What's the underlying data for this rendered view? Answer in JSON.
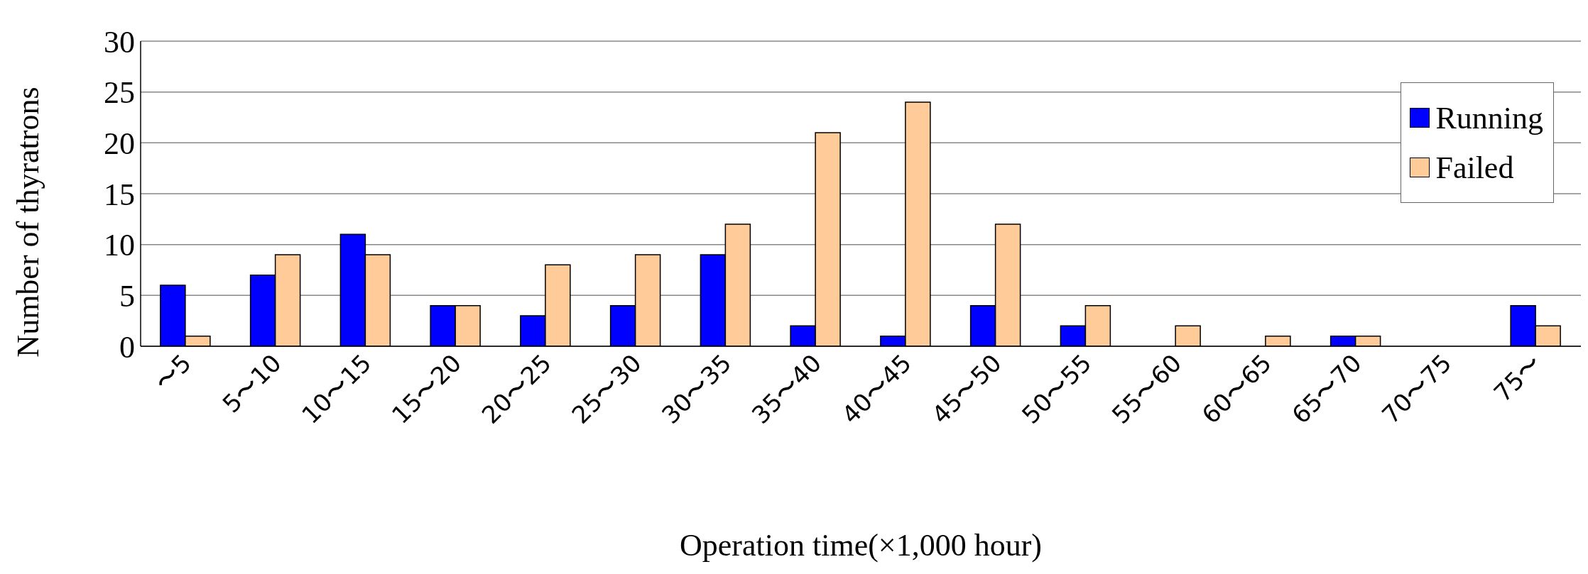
{
  "chart_data": {
    "type": "bar",
    "xlabel": "Operation time(×1,000 hour)",
    "ylabel": "Number of thyratrons",
    "categories": [
      "〜5",
      "5〜10",
      "10〜15",
      "15〜20",
      "20〜25",
      "25〜30",
      "30〜35",
      "35〜40",
      "40〜45",
      "45〜50",
      "50〜55",
      "55〜60",
      "60〜65",
      "65〜70",
      "70〜75",
      "75〜"
    ],
    "series": [
      {
        "name": "Running",
        "color": "#0000ff",
        "values": [
          6,
          7,
          11,
          4,
          3,
          4,
          9,
          2,
          1,
          4,
          2,
          0,
          0,
          1,
          0,
          4
        ]
      },
      {
        "name": "Failed",
        "color": "#ffcc99",
        "values": [
          1,
          9,
          9,
          4,
          8,
          9,
          12,
          21,
          24,
          12,
          4,
          2,
          1,
          1,
          0,
          2
        ]
      }
    ],
    "ylim": [
      0,
      30
    ],
    "yticks": [
      0,
      5,
      10,
      15,
      20,
      25,
      30
    ],
    "grid": "y",
    "legend": "top right"
  }
}
